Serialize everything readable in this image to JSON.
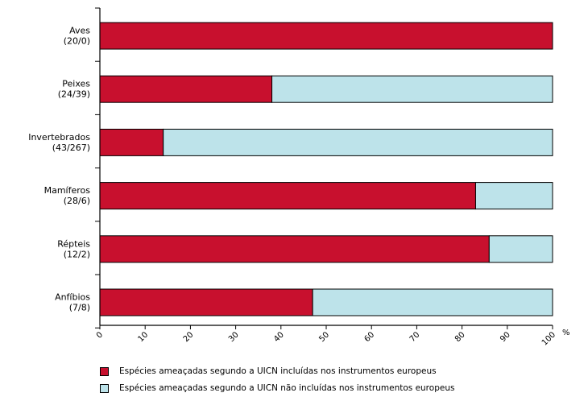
{
  "chart_data": {
    "type": "bar",
    "stacked": true,
    "orientation": "horizontal",
    "xlim": [
      0,
      100
    ],
    "xticks": [
      "0",
      "10",
      "20",
      "30",
      "40",
      "50",
      "60",
      "70",
      "80",
      "90",
      "100"
    ],
    "x_unit": "%",
    "categories": [
      {
        "name": "Aves",
        "counts": "(20/0)"
      },
      {
        "name": "Peixes",
        "counts": "(24/39)"
      },
      {
        "name": "Invertebrados",
        "counts": "(43/267)"
      },
      {
        "name": "Mamíferos",
        "counts": "(28/6)"
      },
      {
        "name": "Répteis",
        "counts": "(12/2)"
      },
      {
        "name": "Anfíbios",
        "counts": "(7/8)"
      }
    ],
    "series": [
      {
        "name": "Espécies ameaçadas segundo a UICN incluídas nos instrumentos europeus",
        "color": "#c8102e",
        "values": [
          100,
          38,
          14,
          83,
          86,
          47
        ]
      },
      {
        "name": "Espécies ameaçadas segundo a UICN não incluídas nos instrumentos europeus",
        "color": "#bde3ea",
        "values": [
          0,
          62,
          86,
          17,
          14,
          53
        ]
      }
    ],
    "legend_position": "bottom",
    "grid": false
  }
}
